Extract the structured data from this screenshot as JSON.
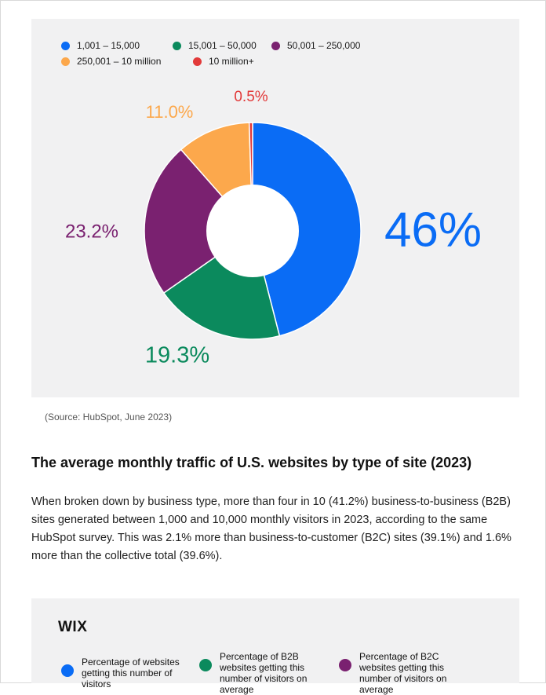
{
  "chart_data": {
    "type": "pie",
    "donut": true,
    "categories": [
      "1,001 – 15,000",
      "15,001 – 50,000",
      "50,001 – 250,000",
      "250,001 – 10 million",
      "10 million+"
    ],
    "values": [
      46,
      19.3,
      23.2,
      11.0,
      0.5
    ],
    "value_labels": [
      "46%",
      "19.3%",
      "23.2%",
      "11.0%",
      "0.5%"
    ],
    "colors": [
      "#0a6cf5",
      "#0b8a5d",
      "#7a2170",
      "#fca84c",
      "#e23a3a"
    ],
    "legend": "top",
    "source": "(Source: HubSpot, June 2023)"
  },
  "article": {
    "heading": "The average monthly traffic of U.S. websites by type of site (2023)",
    "paragraph": "When broken down by business type, more than four in 10 (41.2%) business-to-business (B2B) sites generated between 1,000 and 10,000 monthly visitors in 2023, according to the same HubSpot survey. This was 2.1% more than business-to-customer (B2C) sites (39.1%) and 1.6% more than the collective total (39.6%)."
  },
  "next_chart": {
    "logo": "WIX",
    "legend": [
      {
        "label": "Percentage of websites getting this number of visitors",
        "color": "#0a6cf5"
      },
      {
        "label": "Percentage of B2B websites getting this number of visitors on average",
        "color": "#0b8a5d"
      },
      {
        "label": "Percentage of B2C websites getting this number of visitors on average",
        "color": "#7a2170"
      }
    ]
  }
}
